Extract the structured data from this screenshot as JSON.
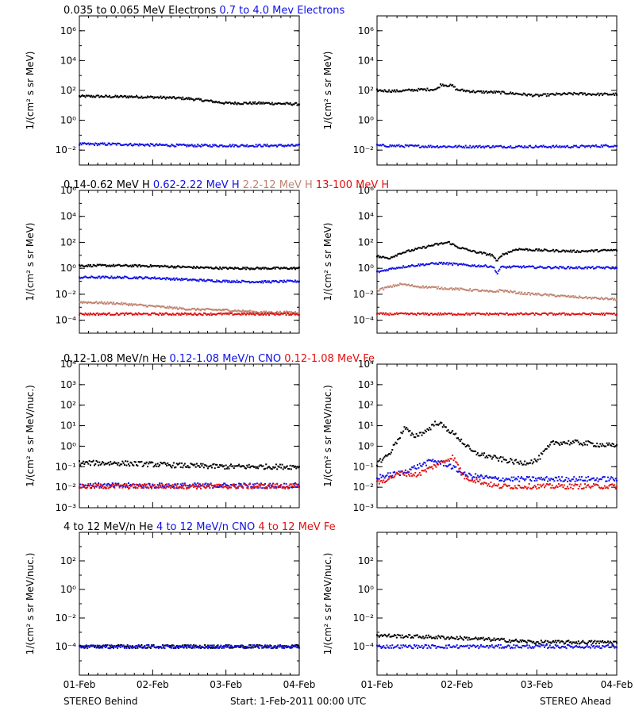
{
  "colors": {
    "black": "#000000",
    "blue": "#1010e6",
    "tan": "#c08470",
    "red": "#e01010"
  },
  "x_ticks": [
    "01-Feb",
    "02-Feb",
    "03-Feb",
    "04-Feb"
  ],
  "footer": {
    "left": "STEREO Behind",
    "center": "Start:   1-Feb-2011 00:00 UTC",
    "right": "STEREO Ahead"
  },
  "chart_data": [
    {
      "type": "scatter",
      "row": 0,
      "spacecraft": "STEREO Behind",
      "ylabel": "1/(cm² s sr MeV)",
      "yscale": "log",
      "ylim": [
        0.001,
        10000000
      ],
      "xlim": [
        0,
        3
      ],
      "ytick_labels": [
        "10⁻²",
        "10⁰",
        "10²",
        "10⁴",
        "10⁶"
      ],
      "ytick_values": [
        0.01,
        1,
        100,
        10000,
        1000000
      ],
      "series": [
        {
          "name": "0.035 to 0.065 MeV Electrons",
          "color": "#000000",
          "x": [
            0,
            0.25,
            0.5,
            0.75,
            1.0,
            1.25,
            1.5,
            1.75,
            2.0,
            2.25,
            2.5,
            2.75,
            3.0
          ],
          "y": [
            40,
            40,
            38,
            38,
            35,
            32,
            28,
            20,
            14,
            14,
            14,
            13,
            12
          ]
        },
        {
          "name": "0.7 to 4.0 Mev Electrons",
          "color": "#1010e6",
          "x": [
            0,
            0.5,
            1.0,
            1.5,
            2.0,
            2.5,
            3.0
          ],
          "y": [
            0.025,
            0.025,
            0.022,
            0.02,
            0.02,
            0.02,
            0.02
          ]
        }
      ]
    },
    {
      "type": "scatter",
      "row": 0,
      "spacecraft": "STEREO Ahead",
      "ylabel": "1/(cm² s sr MeV)",
      "yscale": "log",
      "ylim": [
        0.001,
        10000000
      ],
      "xlim": [
        0,
        3
      ],
      "ytick_labels": [
        "10⁻²",
        "10⁰",
        "10²",
        "10⁴",
        "10⁶"
      ],
      "ytick_values": [
        0.01,
        1,
        100,
        10000,
        1000000
      ],
      "series": [
        {
          "name": "0.035 to 0.065 MeV Electrons",
          "color": "#000000",
          "x": [
            0,
            0.25,
            0.5,
            0.75,
            0.8,
            0.95,
            1.0,
            1.25,
            1.5,
            1.75,
            2.0,
            2.25,
            2.5,
            2.75,
            3.0
          ],
          "y": [
            100,
            90,
            110,
            120,
            250,
            200,
            110,
            80,
            75,
            60,
            45,
            55,
            60,
            55,
            55
          ]
        },
        {
          "name": "0.7 to 4.0 Mev Electrons",
          "color": "#1010e6",
          "x": [
            0,
            0.5,
            1.0,
            1.5,
            2.0,
            2.5,
            3.0
          ],
          "y": [
            0.02,
            0.018,
            0.017,
            0.017,
            0.017,
            0.017,
            0.02
          ]
        }
      ]
    },
    {
      "type": "scatter",
      "row": 1,
      "spacecraft": "STEREO Behind",
      "ylabel": "1/(cm² s sr MeV)",
      "yscale": "log",
      "ylim": [
        1e-05,
        1000000
      ],
      "xlim": [
        0,
        3
      ],
      "ytick_labels": [
        "10⁻⁴",
        "10⁻²",
        "10⁰",
        "10²",
        "10⁴",
        "10⁶"
      ],
      "ytick_values": [
        0.0001,
        0.01,
        1,
        100,
        10000,
        1000000
      ],
      "series": [
        {
          "name": "0.14-0.62 MeV H",
          "color": "#000000",
          "x": [
            0,
            0.5,
            1.0,
            1.5,
            2.0,
            2.5,
            3.0
          ],
          "y": [
            1.6,
            1.6,
            1.5,
            1.2,
            1.0,
            1.0,
            1.0
          ]
        },
        {
          "name": "0.62-2.22 MeV H",
          "color": "#1010e6",
          "x": [
            0,
            0.5,
            1.0,
            1.5,
            2.0,
            2.5,
            3.0
          ],
          "y": [
            0.2,
            0.2,
            0.18,
            0.13,
            0.1,
            0.09,
            0.1
          ]
        },
        {
          "name": "2.2-12 MeV H",
          "color": "#c08470",
          "x": [
            0,
            0.5,
            1.0,
            1.5,
            2.0,
            2.5,
            3.0
          ],
          "y": [
            0.0025,
            0.002,
            0.0012,
            0.0007,
            0.0006,
            0.0004,
            0.0004
          ]
        },
        {
          "name": "13-100 MeV H",
          "color": "#e01010",
          "x": [
            0,
            0.5,
            1.0,
            1.5,
            2.0,
            2.5,
            3.0
          ],
          "y": [
            0.0003,
            0.0003,
            0.0003,
            0.0003,
            0.0003,
            0.0003,
            0.0003
          ]
        }
      ]
    },
    {
      "type": "scatter",
      "row": 1,
      "spacecraft": "STEREO Ahead",
      "ylabel": "1/(cm² s sr MeV)",
      "yscale": "log",
      "ylim": [
        1e-05,
        1000000
      ],
      "xlim": [
        0,
        3
      ],
      "ytick_labels": [
        "10⁻⁴",
        "10⁻²",
        "10⁰",
        "10²",
        "10⁴",
        "10⁶"
      ],
      "ytick_values": [
        0.0001,
        0.01,
        1,
        100,
        10000,
        1000000
      ],
      "series": [
        {
          "name": "0.14-0.62 MeV H",
          "color": "#000000",
          "x": [
            0,
            0.15,
            0.3,
            0.5,
            0.7,
            0.9,
            1.0,
            1.2,
            1.45,
            1.5,
            1.55,
            1.75,
            2.0,
            2.5,
            3.0
          ],
          "y": [
            8,
            6,
            15,
            30,
            60,
            100,
            45,
            20,
            10,
            3,
            10,
            30,
            25,
            20,
            25
          ]
        },
        {
          "name": "0.62-2.22 MeV H",
          "color": "#1010e6",
          "x": [
            0,
            0.2,
            0.4,
            0.6,
            0.8,
            1.0,
            1.2,
            1.45,
            1.5,
            1.55,
            1.8,
            2.0,
            2.5,
            3.0
          ],
          "y": [
            0.5,
            1.0,
            1.5,
            2.0,
            2.5,
            2.0,
            1.6,
            1.4,
            0.4,
            1.2,
            1.3,
            1.2,
            1.1,
            1.1
          ]
        },
        {
          "name": "2.2-12 MeV H",
          "color": "#c08470",
          "x": [
            0,
            0.1,
            0.3,
            0.5,
            0.8,
            1.0,
            1.25,
            1.45,
            1.55,
            1.8,
            2.0,
            2.5,
            3.0
          ],
          "y": [
            0.02,
            0.03,
            0.06,
            0.04,
            0.03,
            0.025,
            0.02,
            0.015,
            0.02,
            0.012,
            0.01,
            0.006,
            0.004
          ]
        },
        {
          "name": "13-100 MeV H",
          "color": "#e01010",
          "x": [
            0,
            0.5,
            1.0,
            1.5,
            2.0,
            2.5,
            3.0
          ],
          "y": [
            0.0003,
            0.0003,
            0.0003,
            0.0003,
            0.0003,
            0.0003,
            0.0003
          ]
        }
      ]
    },
    {
      "type": "scatter",
      "row": 2,
      "spacecraft": "STEREO Behind",
      "ylabel": "1/(cm² s sr MeV/nuc.)",
      "yscale": "log",
      "ylim": [
        0.001,
        10000
      ],
      "xlim": [
        0,
        3
      ],
      "ytick_labels": [
        "10⁻³",
        "10⁻²",
        "10⁻¹",
        "10⁰",
        "10¹",
        "10²",
        "10³",
        "10⁴"
      ],
      "ytick_values": [
        0.001,
        0.01,
        0.1,
        1,
        10,
        100,
        1000,
        10000
      ],
      "series": [
        {
          "name": "0.12-1.08 MeV/n He",
          "color": "#000000",
          "x": [
            0,
            0.5,
            1.0,
            1.5,
            2.0,
            2.5,
            3.0
          ],
          "y": [
            0.15,
            0.15,
            0.13,
            0.11,
            0.1,
            0.1,
            0.1
          ]
        },
        {
          "name": "0.12-1.08 MeV/n CNO",
          "color": "#1010e6",
          "x": [
            0,
            1.0,
            2.0,
            3.0
          ],
          "y": [
            0.012,
            0.012,
            0.012,
            0.012
          ]
        },
        {
          "name": "0.12-1.08 MeV Fe",
          "color": "#e01010",
          "x": [
            0,
            1.0,
            2.0,
            3.0
          ],
          "y": [
            0.011,
            0.011,
            0.011,
            0.011
          ]
        }
      ]
    },
    {
      "type": "scatter",
      "row": 2,
      "spacecraft": "STEREO Ahead",
      "ylabel": "1/(cm² s sr MeV/nuc.)",
      "yscale": "log",
      "ylim": [
        0.001,
        10000
      ],
      "xlim": [
        0,
        3
      ],
      "ytick_labels": [
        "10⁻³",
        "10⁻²",
        "10⁻¹",
        "10⁰",
        "10¹",
        "10²",
        "10³",
        "10⁴"
      ],
      "ytick_values": [
        0.001,
        0.01,
        0.1,
        1,
        10,
        100,
        1000,
        10000
      ],
      "series": [
        {
          "name": "0.12-1.08 MeV/n He",
          "color": "#000000",
          "x": [
            0,
            0.15,
            0.35,
            0.45,
            0.6,
            0.75,
            0.9,
            1.0,
            1.2,
            1.5,
            1.8,
            2.0,
            2.2,
            2.5,
            3.0
          ],
          "y": [
            0.15,
            0.4,
            8,
            3,
            5,
            15,
            6,
            3,
            0.5,
            0.25,
            0.15,
            0.2,
            1.5,
            1.5,
            1.0
          ]
        },
        {
          "name": "0.12-1.08 MeV/n CNO",
          "color": "#1010e6",
          "x": [
            0,
            0.3,
            0.5,
            0.7,
            0.9,
            1.1,
            1.5,
            2.0,
            2.5,
            3.0
          ],
          "y": [
            0.03,
            0.05,
            0.1,
            0.2,
            0.12,
            0.04,
            0.025,
            0.025,
            0.025,
            0.025
          ]
        },
        {
          "name": "0.12-1.08 MeV Fe",
          "color": "#e01010",
          "x": [
            0,
            0.3,
            0.5,
            0.7,
            0.85,
            0.95,
            1.1,
            1.5,
            2.0,
            2.5,
            3.0
          ],
          "y": [
            0.015,
            0.05,
            0.04,
            0.1,
            0.2,
            0.3,
            0.03,
            0.011,
            0.011,
            0.011,
            0.011
          ]
        }
      ]
    },
    {
      "type": "scatter",
      "row": 3,
      "spacecraft": "STEREO Behind",
      "ylabel": "1/(cm² s sr MeV/nuc.)",
      "yscale": "log",
      "ylim": [
        1e-06,
        10000
      ],
      "xlim": [
        0,
        3
      ],
      "ytick_labels": [
        "10⁻⁴",
        "10⁻²",
        "10⁰",
        "10²"
      ],
      "ytick_values": [
        0.0001,
        0.01,
        1,
        100
      ],
      "series": [
        {
          "name": "4 to 12 MeV/n He",
          "color": "#000000",
          "x": [
            0,
            0.5,
            1.0,
            1.5,
            2.0,
            2.5,
            3.0
          ],
          "y": [
            0.0001,
            0.0001,
            0.0001,
            0.0001,
            0.0001,
            0.0001,
            0.0001
          ]
        },
        {
          "name": "4 to 12 MeV/n CNO",
          "color": "#1010e6",
          "x": [
            0,
            1.0,
            2.0,
            3.0
          ],
          "y": [
            0.0001,
            0.0001,
            0.0001,
            0.0001
          ]
        },
        {
          "name": "4 to 12 MeV Fe",
          "color": "#e01010",
          "x": [],
          "y": []
        }
      ]
    },
    {
      "type": "scatter",
      "row": 3,
      "spacecraft": "STEREO Ahead",
      "ylabel": "1/(cm² s sr MeV/nuc.)",
      "yscale": "log",
      "ylim": [
        1e-06,
        10000
      ],
      "xlim": [
        0,
        3
      ],
      "ytick_labels": [
        "10⁻⁴",
        "10⁻²",
        "10⁰",
        "10²"
      ],
      "ytick_values": [
        0.0001,
        0.01,
        1,
        100
      ],
      "series": [
        {
          "name": "4 to 12 MeV/n He",
          "color": "#000000",
          "x": [
            0,
            0.5,
            1.0,
            1.5,
            2.0,
            2.5,
            3.0
          ],
          "y": [
            0.0006,
            0.0005,
            0.0004,
            0.0003,
            0.0002,
            0.0002,
            0.0002
          ]
        },
        {
          "name": "4 to 12 MeV/n CNO",
          "color": "#1010e6",
          "x": [
            0,
            1.0,
            2.0,
            3.0
          ],
          "y": [
            0.0001,
            0.0001,
            0.0001,
            0.0001
          ]
        },
        {
          "name": "4 to 12 MeV Fe",
          "color": "#e01010",
          "x": [],
          "y": []
        }
      ]
    }
  ]
}
